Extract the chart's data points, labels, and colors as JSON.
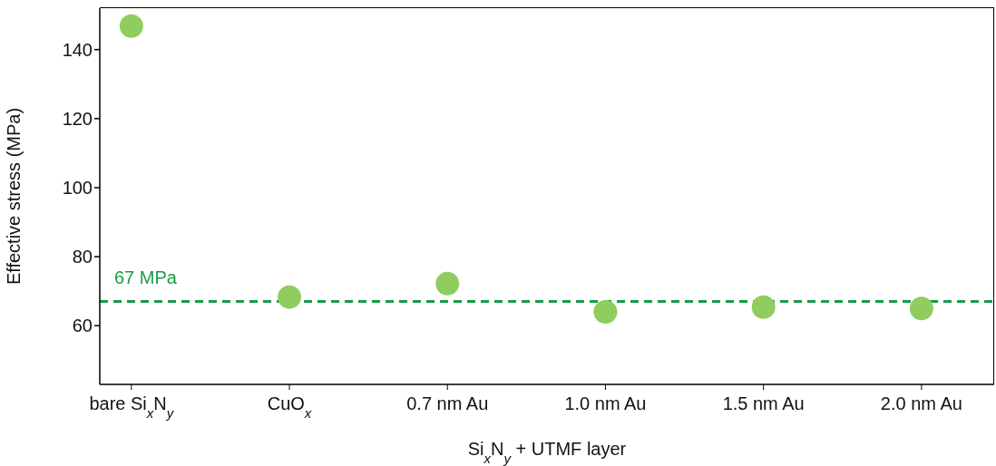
{
  "chart_data": {
    "type": "scatter",
    "xlabel": "Si$_{x}$N$_{y}$ + UTMF layer",
    "ylabel": "Effective stress (MPa)",
    "categories": [
      "bare Si$_{x}$N$_{y}$",
      "CuO$_{x}$",
      "0.7 nm Au",
      "1.0 nm Au",
      "1.5 nm Au",
      "2.0 nm Au"
    ],
    "series": [
      {
        "color": "#8fce5e",
        "values": [
          146.8,
          68.3,
          72.2,
          64.0,
          65.4,
          65.0
        ]
      }
    ],
    "ylim": [
      43,
      152
    ],
    "yticks": [
      60,
      80,
      100,
      120,
      140
    ],
    "marker": "circle",
    "ref_lines": [
      {
        "axis": "y",
        "value": 67,
        "label": "67 MPa",
        "color": "#1a9a4a",
        "line_style": "dashed"
      }
    ]
  }
}
